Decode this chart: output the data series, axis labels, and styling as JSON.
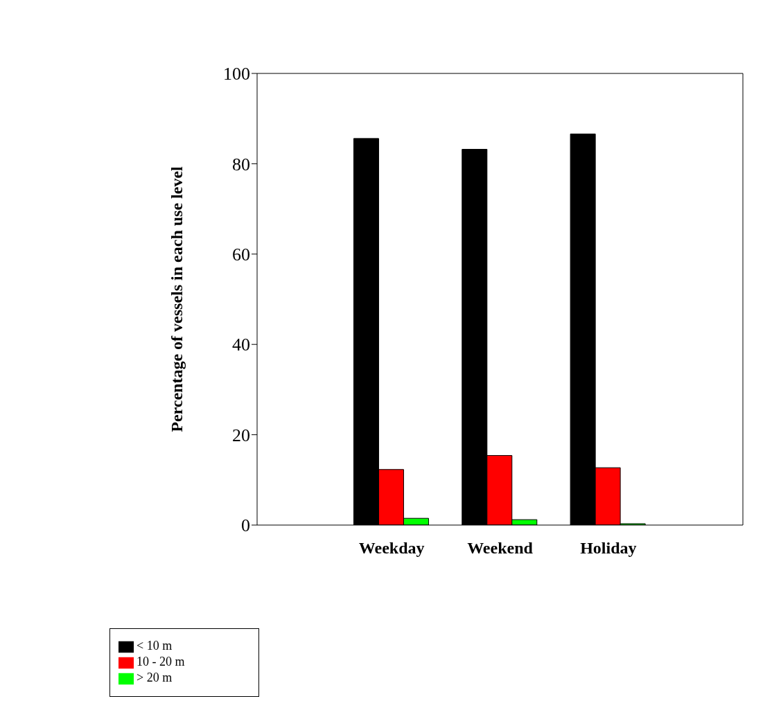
{
  "chart_data": {
    "type": "bar",
    "ylabel": "Percentage of vessels in each use level",
    "categories": [
      "Weekday",
      "Weekend",
      "Holiday"
    ],
    "series": [
      {
        "name": "< 10 m",
        "color": "#000000",
        "values": [
          85.6,
          83.2,
          86.6
        ]
      },
      {
        "name": "10 - 20 m",
        "color": "#ff0000",
        "values": [
          12.3,
          15.4,
          12.7
        ]
      },
      {
        "name": "> 20 m",
        "color": "#00ff00",
        "values": [
          1.5,
          1.2,
          0.3
        ]
      }
    ],
    "ylim": [
      0,
      100
    ],
    "yticks": [
      0,
      20,
      40,
      60,
      80,
      100
    ],
    "grid": false,
    "legend": "bottom left"
  }
}
